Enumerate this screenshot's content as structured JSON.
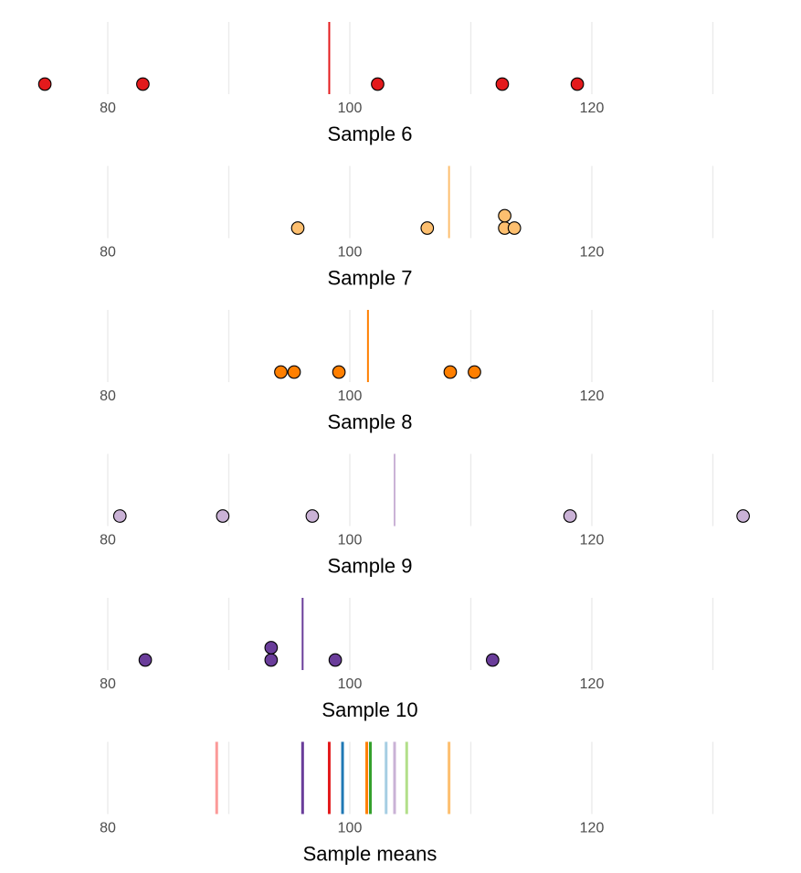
{
  "chart_data": {
    "type": "dot-strip",
    "x_ticks": [
      80,
      100,
      120
    ],
    "gridlines": [
      80,
      90,
      100,
      110,
      120,
      130
    ],
    "xlim": [
      74,
      134
    ],
    "panels": [
      {
        "title": "Sample 6",
        "color": "#e31a1c",
        "mean": 98.3,
        "points": [
          {
            "x": 74.8,
            "y": 0
          },
          {
            "x": 82.9,
            "y": 0
          },
          {
            "x": 102.3,
            "y": 0
          },
          {
            "x": 112.6,
            "y": 0
          },
          {
            "x": 118.8,
            "y": 0
          }
        ]
      },
      {
        "title": "Sample 7",
        "color": "#fdbf6f",
        "mean": 108.2,
        "points": [
          {
            "x": 95.7,
            "y": 0
          },
          {
            "x": 106.4,
            "y": 0
          },
          {
            "x": 112.8,
            "y": 0
          },
          {
            "x": 113.6,
            "y": 0
          },
          {
            "x": 112.8,
            "y": 1
          }
        ]
      },
      {
        "title": "Sample 8",
        "color": "#ff7f00",
        "mean": 101.5,
        "points": [
          {
            "x": 94.3,
            "y": 0
          },
          {
            "x": 95.4,
            "y": 0
          },
          {
            "x": 99.1,
            "y": 0
          },
          {
            "x": 108.3,
            "y": 0
          },
          {
            "x": 110.3,
            "y": 0
          }
        ]
      },
      {
        "title": "Sample 9",
        "color": "#cab2d6",
        "mean": 103.7,
        "points": [
          {
            "x": 81.0,
            "y": 0
          },
          {
            "x": 89.5,
            "y": 0
          },
          {
            "x": 96.9,
            "y": 0
          },
          {
            "x": 118.2,
            "y": 0
          },
          {
            "x": 132.5,
            "y": 0
          }
        ]
      },
      {
        "title": "Sample 10",
        "color": "#6a3d9a",
        "mean": 96.1,
        "points": [
          {
            "x": 83.1,
            "y": 0
          },
          {
            "x": 93.5,
            "y": 0
          },
          {
            "x": 93.5,
            "y": 1
          },
          {
            "x": 98.8,
            "y": 0
          },
          {
            "x": 111.8,
            "y": 0
          }
        ]
      }
    ],
    "means_panel": {
      "title": "Sample means",
      "lines": [
        {
          "x": 89.0,
          "color": "#fb9a99"
        },
        {
          "x": 96.1,
          "color": "#6a3d9a"
        },
        {
          "x": 98.3,
          "color": "#e31a1c"
        },
        {
          "x": 99.4,
          "color": "#1f78b4"
        },
        {
          "x": 101.4,
          "color": "#ff7f00"
        },
        {
          "x": 101.7,
          "color": "#33a02c"
        },
        {
          "x": 103.0,
          "color": "#a6cee3"
        },
        {
          "x": 103.7,
          "color": "#cab2d6"
        },
        {
          "x": 104.7,
          "color": "#b2df8a"
        },
        {
          "x": 108.2,
          "color": "#fdbf6f"
        }
      ]
    }
  }
}
